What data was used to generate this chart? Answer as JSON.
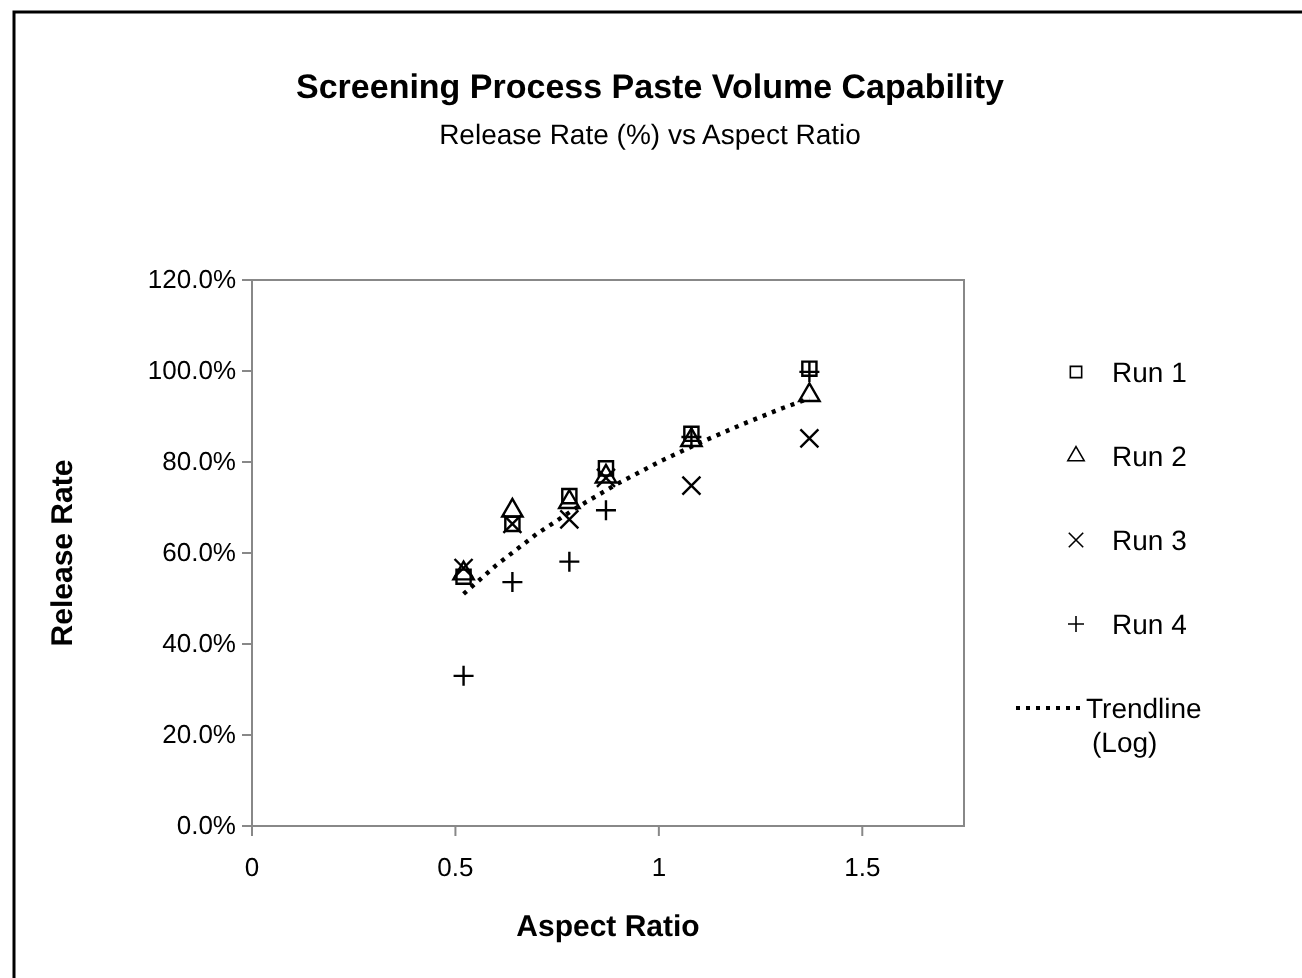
{
  "chart_data": {
    "type": "scatter",
    "title": "Screening Process Paste Volume Capability",
    "subtitle": "Release Rate (%) vs Aspect Ratio",
    "xlabel": "Aspect Ratio",
    "ylabel": "Release Rate",
    "xlim": [
      0,
      1.75
    ],
    "xticks": [
      0,
      0.5,
      1,
      1.5
    ],
    "ylim": [
      0,
      120
    ],
    "yticks": [
      {
        "value": 0,
        "label": "0.0%"
      },
      {
        "value": 20,
        "label": "20.0%"
      },
      {
        "value": 40,
        "label": "40.0%"
      },
      {
        "value": 60,
        "label": "60.0%"
      },
      {
        "value": 80,
        "label": "80.0%"
      },
      {
        "value": 100,
        "label": "100.0%"
      },
      {
        "value": 120,
        "label": "120.0%"
      }
    ],
    "grid": false,
    "legend": "right",
    "series": [
      {
        "name": "Run 1",
        "color": "#000000",
        "marker": "square",
        "x": [
          0.52,
          0.64,
          0.78,
          0.87,
          1.08,
          1.37
        ],
        "values": [
          54.8,
          66.4,
          72.5,
          78.6,
          86.2,
          100.5
        ]
      },
      {
        "name": "Run 2",
        "color": "#000000",
        "marker": "triangle",
        "x": [
          0.52,
          0.64,
          0.78,
          0.87,
          1.08,
          1.37
        ],
        "values": [
          55.5,
          69.3,
          71.2,
          76.8,
          84.8,
          94.7
        ]
      },
      {
        "name": "Run 3",
        "color": "#000000",
        "marker": "cross",
        "x": [
          0.52,
          0.64,
          0.78,
          0.87,
          1.08,
          1.37
        ],
        "values": [
          56.7,
          66.4,
          67.4,
          76.5,
          74.8,
          85.2
        ]
      },
      {
        "name": "Run 4",
        "color": "#000000",
        "marker": "plus",
        "x": [
          0.52,
          0.64,
          0.78,
          0.87,
          1.08,
          1.37
        ],
        "values": [
          33.0,
          53.6,
          58.1,
          69.4,
          85.5,
          99.8
        ]
      },
      {
        "name": "Trendline (Log)",
        "type": "line",
        "color": "#000000",
        "line_style": "dotted",
        "marker": "none",
        "x": [
          0.52,
          0.6,
          0.7,
          0.8,
          0.9,
          1.0,
          1.1,
          1.2,
          1.3,
          1.37
        ],
        "values": [
          51.0,
          57.3,
          64.2,
          70.1,
          75.3,
          80.0,
          84.2,
          88.1,
          91.7,
          94.0
        ]
      }
    ]
  }
}
